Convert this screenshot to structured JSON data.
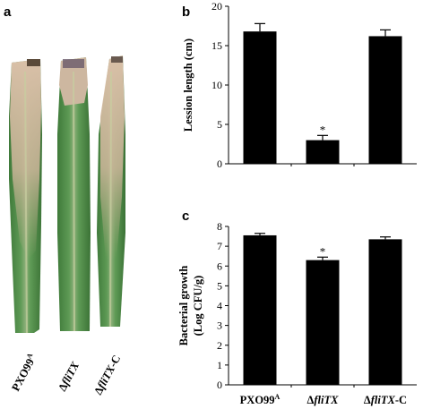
{
  "figure": {
    "panels": {
      "a": "a",
      "b": "b",
      "c": "c"
    }
  },
  "photo": {
    "description_labels": [
      "PXO99",
      "ΔfliTX",
      "ΔfliTX-C"
    ],
    "label_parts": [
      {
        "pre": "PXO99",
        "italic": "",
        "post": "",
        "sup": "A"
      },
      {
        "pre": "Δ",
        "italic": "fliTX",
        "post": "",
        "sup": ""
      },
      {
        "pre": "Δ",
        "italic": "fliTX",
        "post": "-C",
        "sup": ""
      }
    ]
  },
  "chart_data": [
    {
      "panel": "b",
      "type": "bar",
      "categories": [
        "PXO99A",
        "ΔfliTX",
        "ΔfliTX-C"
      ],
      "values": [
        16.8,
        3.0,
        16.2
      ],
      "errors": [
        1.0,
        0.6,
        0.8
      ],
      "significance": [
        "",
        "*",
        ""
      ],
      "ylabel": "Lession length (cm)",
      "ylim": [
        0,
        20
      ],
      "yticks": [
        0,
        5,
        10,
        15,
        20
      ],
      "bar_color": "#000000"
    },
    {
      "panel": "c",
      "type": "bar",
      "categories": [
        "PXO99A",
        "ΔfliTX",
        "ΔfliTX-C"
      ],
      "values": [
        7.55,
        6.3,
        7.35
      ],
      "errors": [
        0.1,
        0.15,
        0.12
      ],
      "significance": [
        "",
        "*",
        ""
      ],
      "ylabel_line1": "Bacterial growth",
      "ylabel_line2": "(Log CFU/g)",
      "ylim": [
        0,
        8
      ],
      "yticks": [
        0,
        1,
        2,
        3,
        4,
        5,
        6,
        7,
        8
      ],
      "bar_color": "#000000"
    }
  ],
  "xaxis_labels": [
    {
      "pre": "PXO99",
      "italic": "",
      "post": "",
      "sup": "A"
    },
    {
      "pre": "Δ",
      "italic": "fliTX",
      "post": "",
      "sup": ""
    },
    {
      "pre": "Δ",
      "italic": "fliTX",
      "post": "-C",
      "sup": ""
    }
  ]
}
